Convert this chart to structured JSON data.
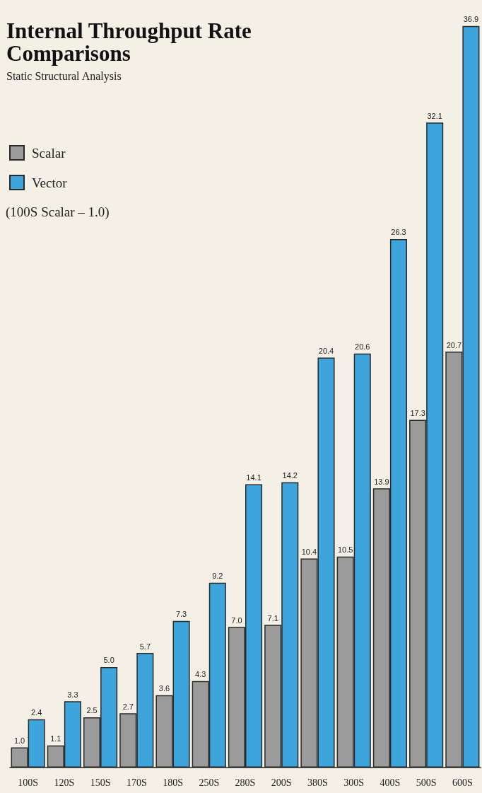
{
  "chart_data": {
    "type": "bar",
    "title": "Internal Throughput Rate Comparisons",
    "subtitle": "Static Structural Analysis",
    "annotations": [
      "(100S Scalar – 1.0)"
    ],
    "categories": [
      "100S",
      "120S",
      "150S",
      "170S",
      "180S",
      "250S",
      "280S",
      "200S",
      "380S",
      "300S",
      "400S",
      "500S",
      "600S"
    ],
    "series": [
      {
        "name": "Scalar",
        "color": "#9b9b9b",
        "values": [
          1.0,
          1.1,
          2.5,
          2.7,
          3.6,
          4.3,
          7.0,
          7.1,
          10.4,
          10.5,
          13.9,
          17.3,
          20.7
        ],
        "value_labels": [
          "1.0",
          "1.1",
          "2.5",
          "2.7",
          "3.6",
          "4.3",
          "7.0",
          "7.1",
          "10.4",
          "10.5",
          "13.9",
          "17.3",
          "20.7"
        ]
      },
      {
        "name": "Vector",
        "color": "#3ea5dc",
        "values": [
          2.4,
          3.3,
          5.0,
          5.7,
          7.3,
          9.2,
          14.1,
          14.2,
          20.4,
          20.6,
          26.3,
          32.1,
          36.9
        ],
        "value_labels": [
          "2.4",
          "3.3",
          "5.0",
          "5.7",
          "7.3",
          "9.2",
          "14.1",
          "14.2",
          "20.4",
          "20.6",
          "26.3",
          "32.1",
          "36.9"
        ]
      }
    ],
    "ylim": [
      0,
      37
    ],
    "tick_labels": "x",
    "legend": "top left"
  }
}
